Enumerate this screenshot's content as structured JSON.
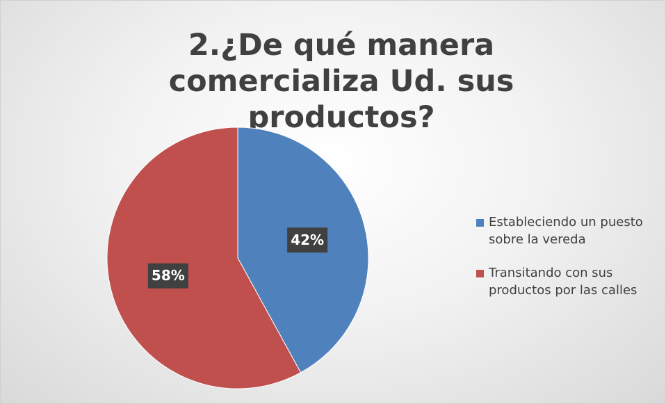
{
  "chart_data": {
    "type": "pie",
    "title": "2.¿De qué manera comercializa Ud. sus productos?",
    "categories": [
      "Estableciendo un puesto sobre la vereda",
      "Transitando con sus productos por las calles"
    ],
    "values": [
      42,
      58
    ],
    "value_labels": [
      "42%",
      "58%"
    ],
    "colors": [
      "#4f81bd",
      "#c0504d"
    ],
    "legend": "right"
  }
}
